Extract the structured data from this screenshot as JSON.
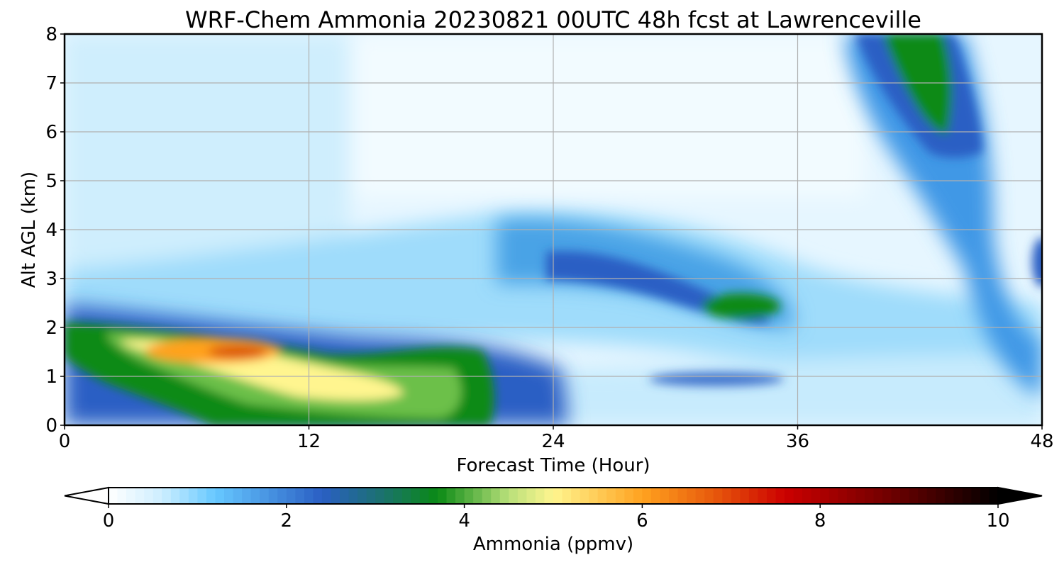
{
  "chart_data": {
    "type": "heatmap",
    "title": "WRF-Chem Ammonia  20230821 00UTC 48h fcst at Lawrenceville",
    "xlabel": "Forecast Time (Hour)",
    "ylabel": "Alt AGL (km)",
    "xlim": [
      0,
      48
    ],
    "ylim": [
      0,
      8
    ],
    "x_ticks": [
      0,
      12,
      24,
      36,
      48
    ],
    "y_ticks": [
      0,
      1,
      2,
      3,
      4,
      5,
      6,
      7,
      8
    ],
    "grid": true,
    "colorbar": {
      "label": "Ammonia  (ppmv)",
      "orientation": "horizontal",
      "placement": "bottom",
      "range": [
        0,
        10
      ],
      "ticks": [
        0,
        2,
        4,
        6,
        8,
        10
      ],
      "extend": "both",
      "colormap": [
        {
          "value": 0,
          "color": "#ffffff"
        },
        {
          "value": 0.6,
          "color": "#cdeeff"
        },
        {
          "value": 1.2,
          "color": "#66c8ff"
        },
        {
          "value": 2.4,
          "color": "#2a5fc4"
        },
        {
          "value": 3.0,
          "color": "#1d6f78"
        },
        {
          "value": 3.7,
          "color": "#0a8a15"
        },
        {
          "value": 4.5,
          "color": "#b9e07a"
        },
        {
          "value": 5.0,
          "color": "#fff58f"
        },
        {
          "value": 6.0,
          "color": "#ffa21f"
        },
        {
          "value": 6.8,
          "color": "#e85a0c"
        },
        {
          "value": 7.6,
          "color": "#cc0000"
        },
        {
          "value": 8.8,
          "color": "#6e0000"
        },
        {
          "value": 10,
          "color": "#000000"
        }
      ]
    },
    "features": [
      {
        "name": "surface-plume-core",
        "x": 8.5,
        "y": 1.45,
        "value": 6.9
      },
      {
        "name": "surface-plume-yellow",
        "x": 13.0,
        "y": 0.95,
        "value": 5.1
      },
      {
        "name": "surface-plume-green",
        "x": 18.5,
        "y": 0.65,
        "value": 4.0
      },
      {
        "name": "elevated-layer-mid",
        "x": 26.0,
        "y": 3.3,
        "value": 2.4
      },
      {
        "name": "elevated-layer-green",
        "x": 33.5,
        "y": 2.45,
        "value": 3.9
      },
      {
        "name": "lower-band",
        "x": 31.0,
        "y": 1.0,
        "value": 2.1
      },
      {
        "name": "upper-plume-green",
        "x": 42.5,
        "y": 7.1,
        "value": 3.9
      },
      {
        "name": "right-edge-layer",
        "x": 47.5,
        "y": 3.3,
        "value": 2.3
      }
    ]
  }
}
